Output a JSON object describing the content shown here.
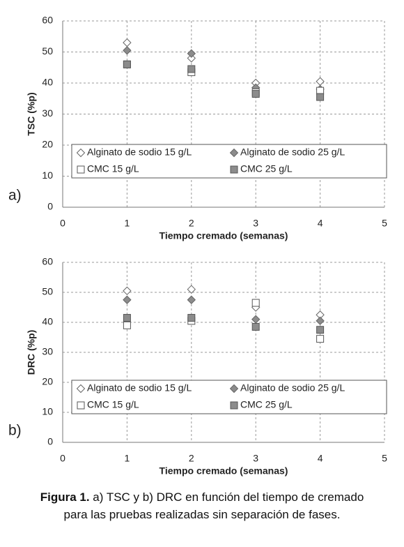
{
  "chart_data": [
    {
      "type": "scatter",
      "annotation": "a)",
      "x_label": "Tiempo cremado (semanas)",
      "y_label": "TSC (%p)",
      "xlim": [
        0,
        5
      ],
      "xticks": [
        0,
        1,
        2,
        3,
        4,
        5
      ],
      "ylim": [
        0,
        60
      ],
      "yticks": [
        0,
        10,
        20,
        30,
        40,
        50,
        60
      ],
      "grid": true,
      "x": [
        1,
        2,
        3,
        4
      ],
      "series": [
        {
          "name": "Alginato de sodio 15 g/L",
          "marker": "diamond",
          "color": "#ffffff",
          "values": [
            53,
            48,
            40,
            40.5
          ]
        },
        {
          "name": "Alginato de sodio 25 g/L",
          "marker": "diamond",
          "color": "#8c8c8c",
          "values": [
            50.5,
            49.5,
            38.5,
            38
          ]
        },
        {
          "name": "CMC 15 g/L",
          "marker": "square",
          "color": "#ffffff",
          "values": [
            46,
            43.5,
            37,
            37.5
          ]
        },
        {
          "name": "CMC 25 g/L",
          "marker": "square",
          "color": "#8c8c8c",
          "values": [
            46,
            44.5,
            36.5,
            35.5
          ]
        }
      ]
    },
    {
      "type": "scatter",
      "annotation": "b)",
      "x_label": "Tiempo cremado (semanas)",
      "y_label": "DRC (%p)",
      "xlim": [
        0,
        5
      ],
      "xticks": [
        0,
        1,
        2,
        3,
        4,
        5
      ],
      "ylim": [
        0,
        60
      ],
      "yticks": [
        0,
        10,
        20,
        30,
        40,
        50,
        60
      ],
      "grid": true,
      "x": [
        1,
        2,
        3,
        4
      ],
      "series": [
        {
          "name": "Alginato de sodio 15 g/L",
          "marker": "diamond",
          "color": "#ffffff",
          "values": [
            50.5,
            51,
            45,
            42.5
          ]
        },
        {
          "name": "Alginato de sodio 25 g/L",
          "marker": "diamond",
          "color": "#8c8c8c",
          "values": [
            47.5,
            47.5,
            41,
            40.5
          ]
        },
        {
          "name": "CMC 15 g/L",
          "marker": "square",
          "color": "#ffffff",
          "values": [
            39,
            40.5,
            46.5,
            34.5
          ]
        },
        {
          "name": "CMC 25 g/L",
          "marker": "square",
          "color": "#8c8c8c",
          "values": [
            41.5,
            41.5,
            38.5,
            37.5
          ]
        }
      ]
    }
  ],
  "caption": {
    "label": "Figura 1.",
    "text": " a) TSC y b) DRC en función del tiempo de cremado para las pruebas realizadas sin separación de fases."
  }
}
